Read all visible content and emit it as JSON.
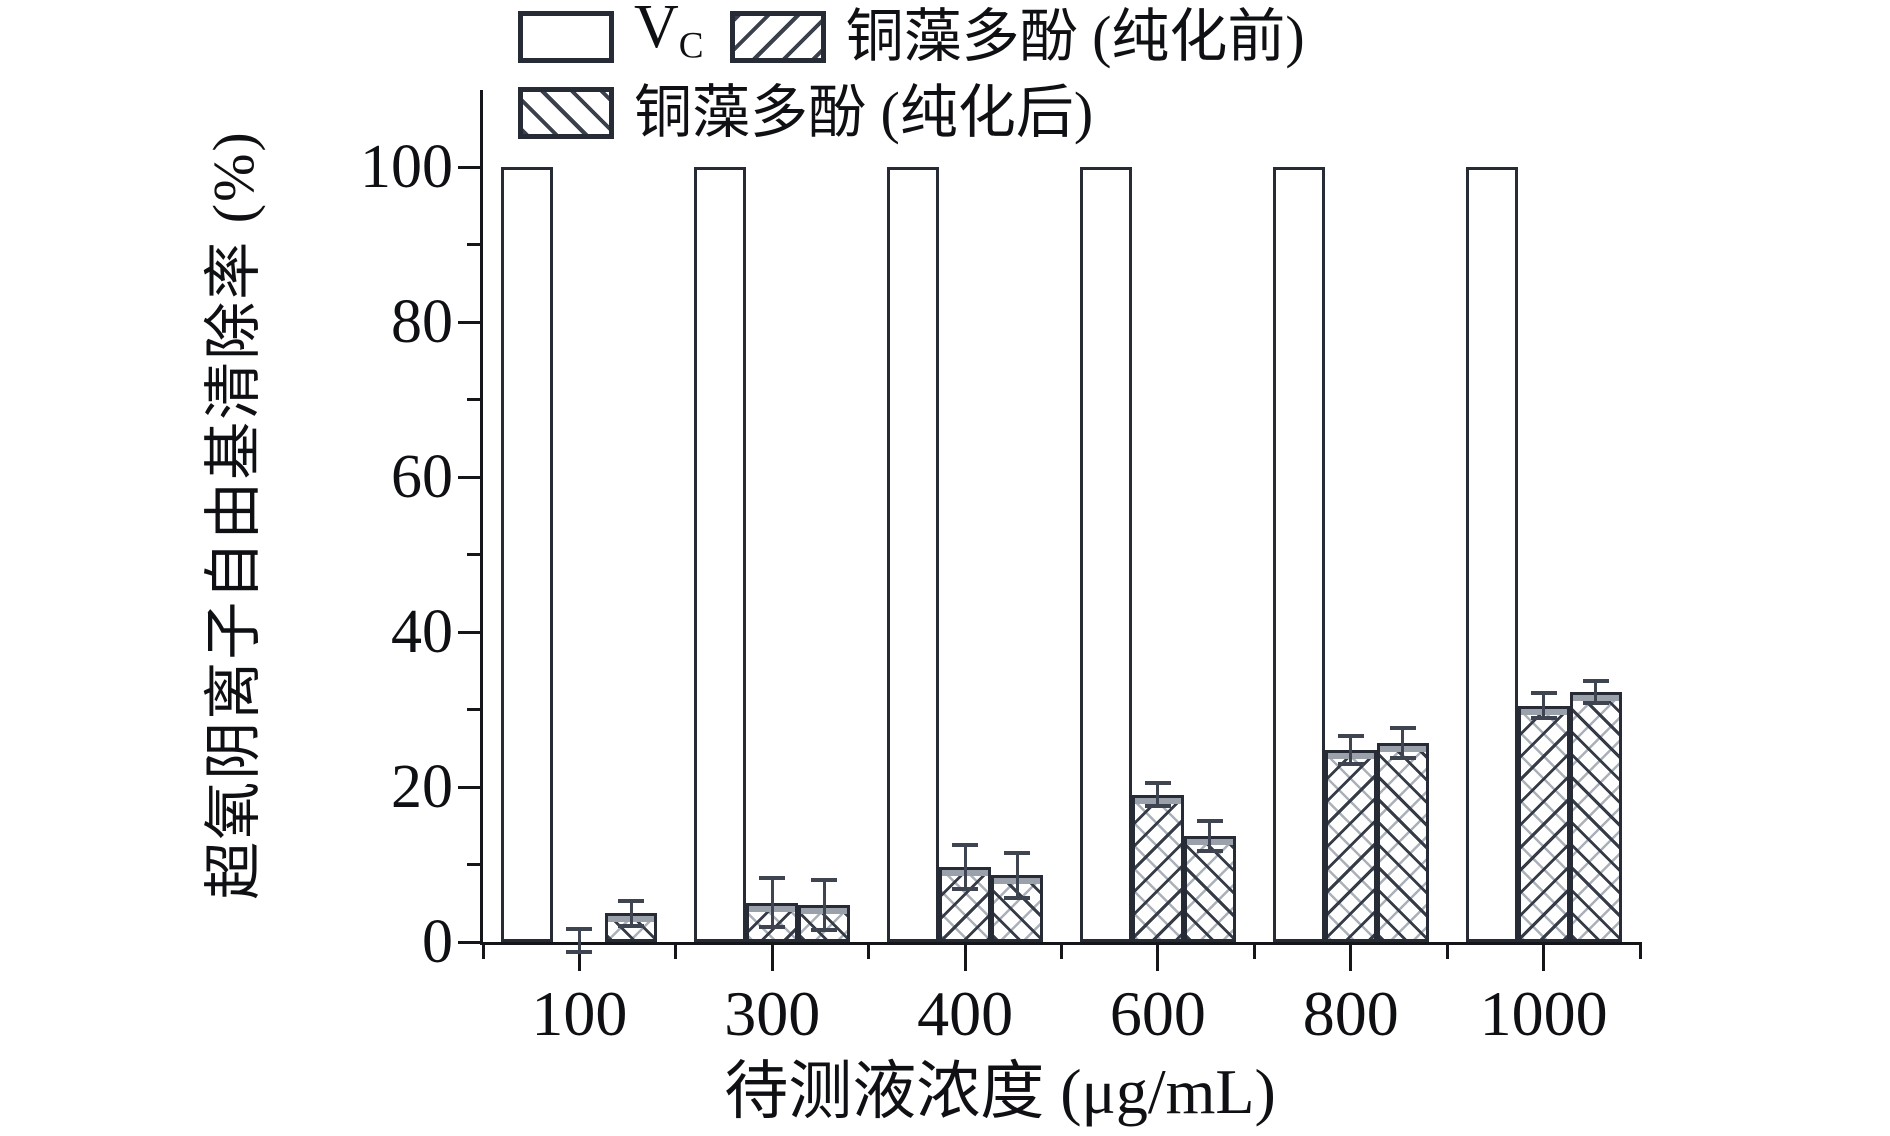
{
  "figure": {
    "background": "#ffffff"
  },
  "legend": {
    "vc": {
      "main": "V",
      "sub": "C"
    },
    "before": "铜藻多酚 (纯化前)",
    "after": "铜藻多酚 (纯化后)"
  },
  "chart_data": {
    "type": "bar",
    "title": "",
    "xlabel": "待测液浓度 (μg/mL)",
    "ylabel": "超氧阴离子自由基清除率 (%)",
    "categories": [
      "100",
      "300",
      "400",
      "600",
      "800",
      "1000"
    ],
    "series": [
      {
        "id": "vc",
        "name": "Vc",
        "pattern": "none",
        "values": [
          100,
          100,
          100,
          100,
          100,
          100
        ],
        "errors": [
          0,
          0,
          0,
          0,
          0,
          0
        ]
      },
      {
        "id": "polyphenol-before-purification",
        "name": "铜藻多酚 (纯化前)",
        "pattern": "forward-diagonal",
        "values": [
          0.2,
          5.1,
          9.7,
          19.0,
          24.8,
          30.5
        ],
        "errors": [
          1.5,
          3.2,
          2.8,
          1.5,
          1.8,
          1.6
        ]
      },
      {
        "id": "polyphenol-after-purification",
        "name": "铜藻多酚 (纯化后)",
        "pattern": "backward-diagonal",
        "values": [
          3.7,
          4.8,
          8.6,
          13.7,
          25.7,
          32.3
        ],
        "errors": [
          1.6,
          3.2,
          2.9,
          1.9,
          1.9,
          1.4
        ]
      }
    ],
    "ylim": [
      0,
      110
    ],
    "yticks_major": [
      0,
      20,
      40,
      60,
      80,
      100
    ],
    "yticks_minor": [
      10,
      30,
      50,
      70,
      90
    ],
    "x_boundary_ticks": true,
    "grid": false,
    "legend_position": "top"
  },
  "colors": {
    "axis": "#14161a",
    "bar_outline": "#262b36",
    "hatch_dark": "#353b47",
    "hatch_gray": "#9aa1ab",
    "error_bar": "#3f4550",
    "background": "#ffffff"
  }
}
